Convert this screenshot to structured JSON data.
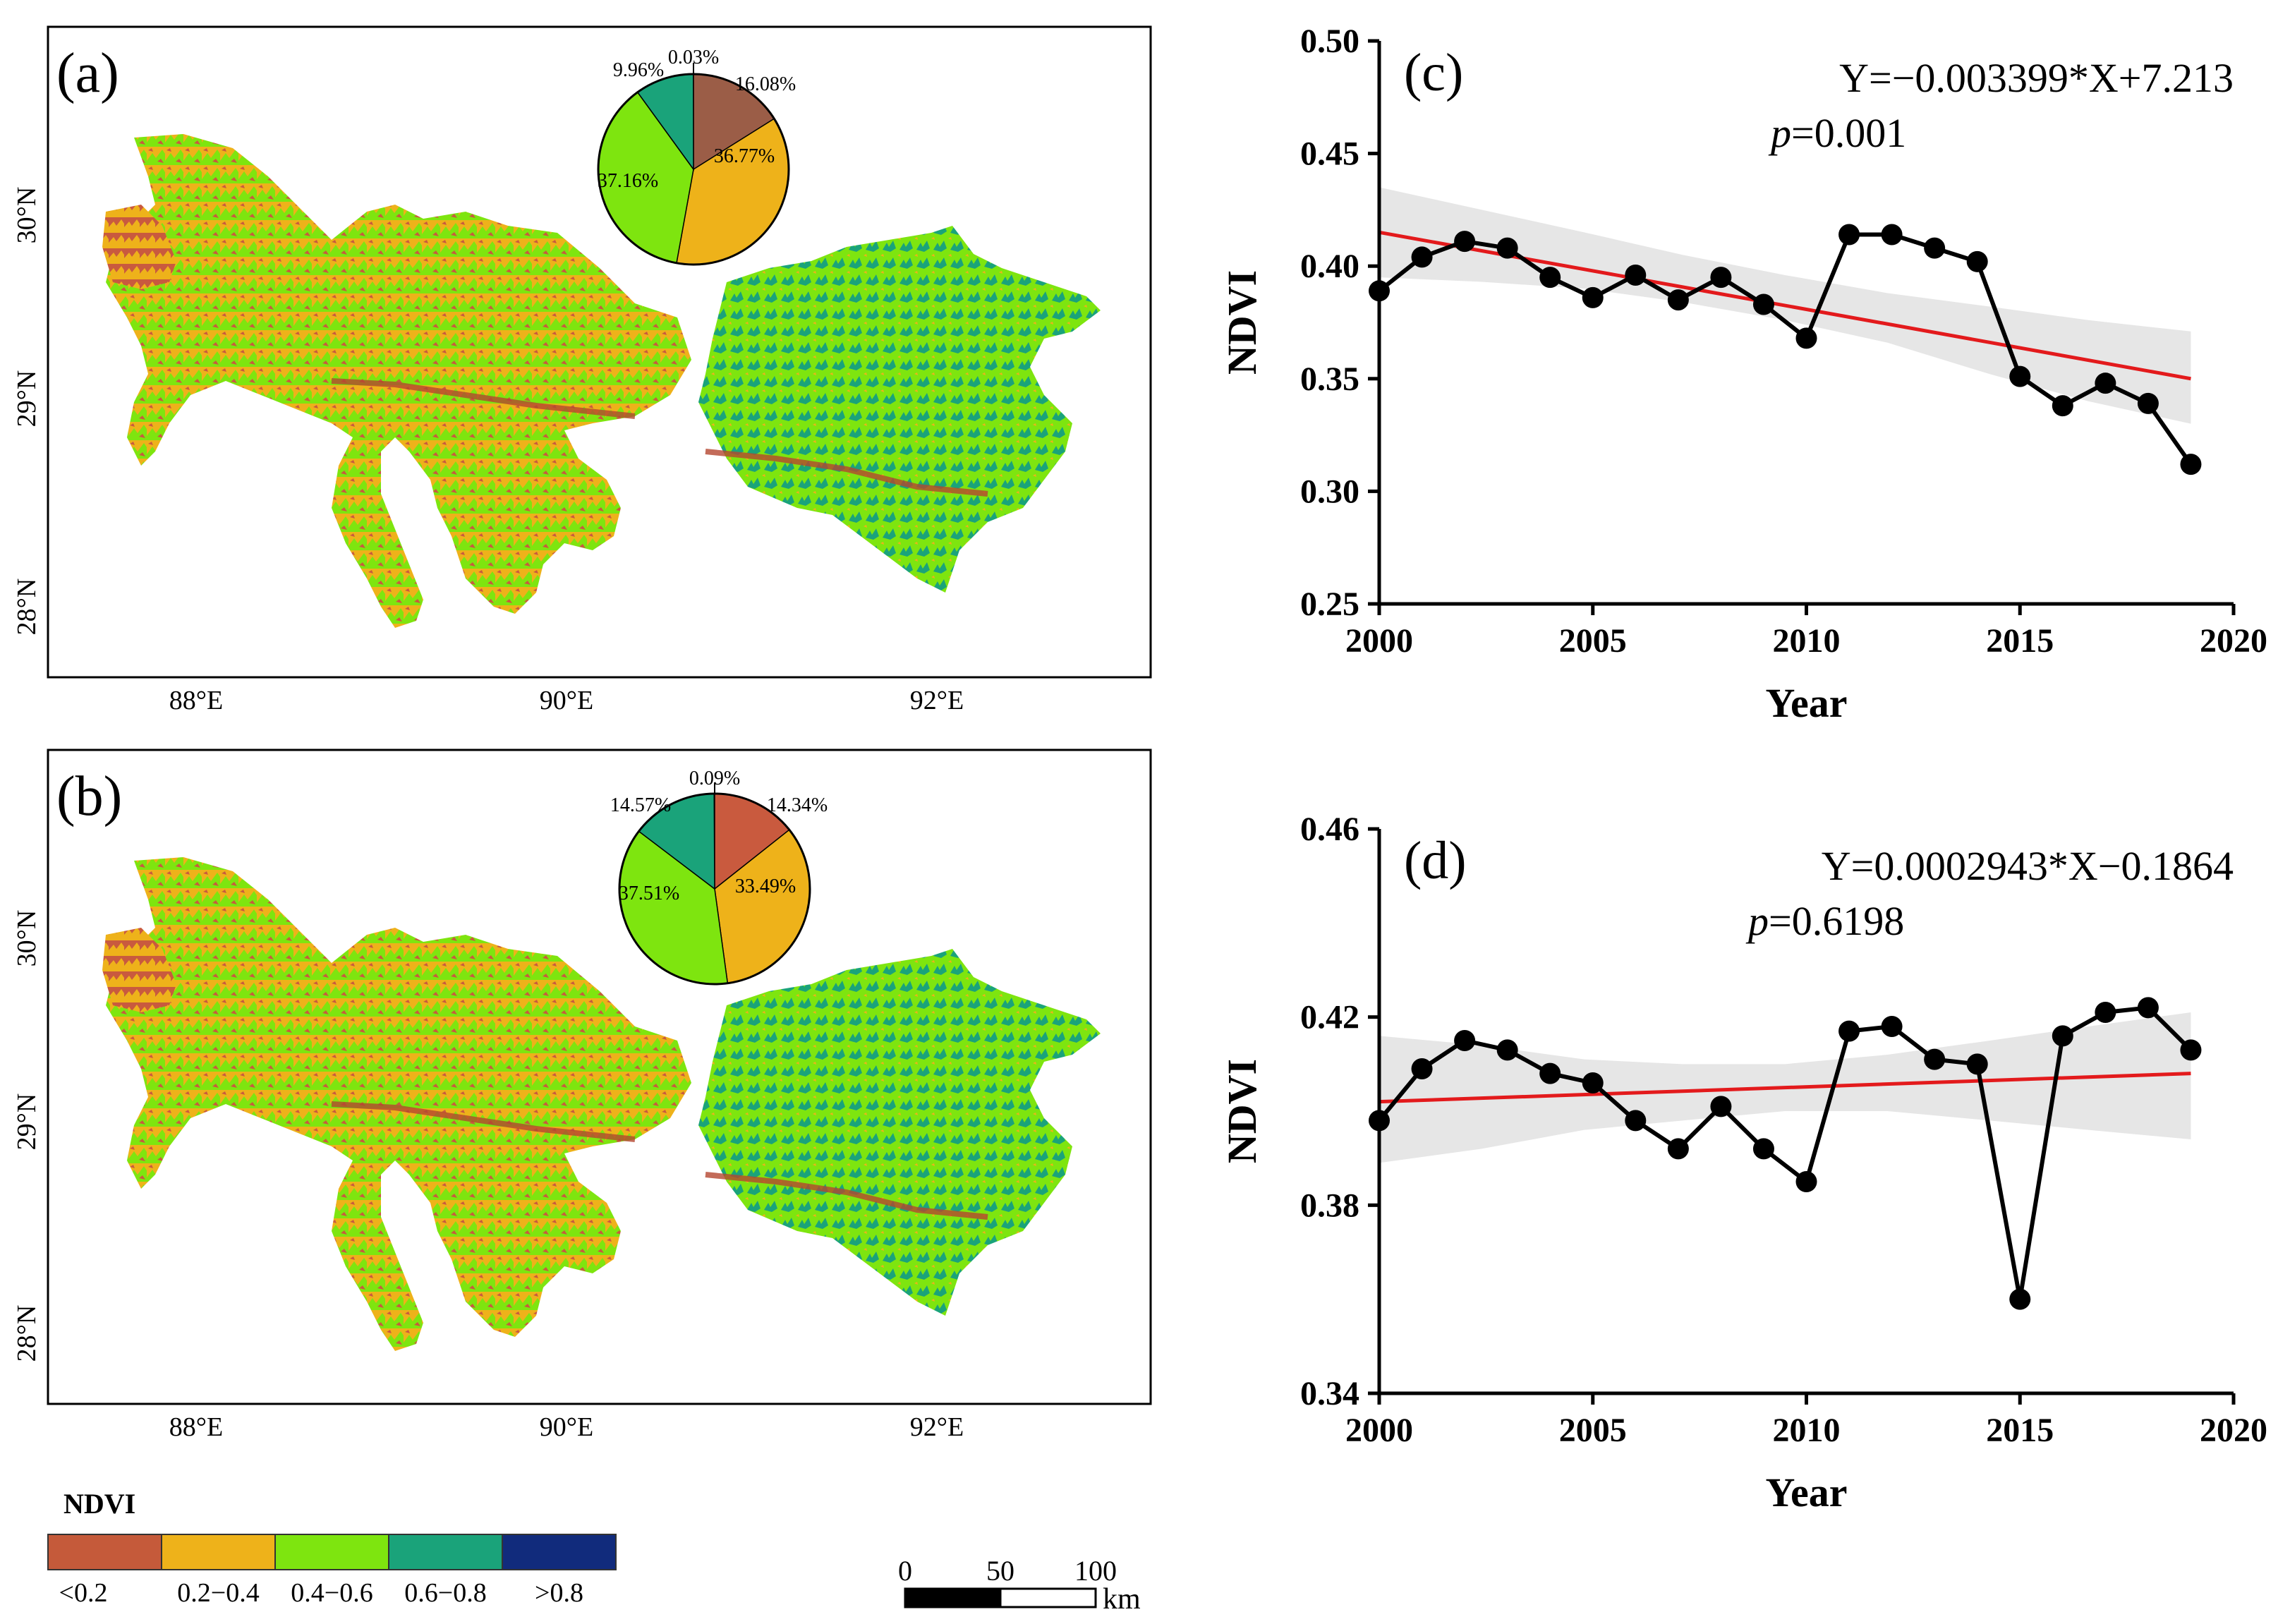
{
  "map_panels": [
    {
      "label": "(a)",
      "x_ticks": [
        "88°E",
        "90°E",
        "92°E"
      ],
      "y_ticks": [
        "30°N",
        "29°N",
        "28°N"
      ],
      "pie": [
        {
          "label": "16.08%",
          "value": 16.08,
          "color": "#9b5d47"
        },
        {
          "label": "36.77%",
          "value": 36.77,
          "color": "#eeb21a"
        },
        {
          "label": "37.16%",
          "value": 37.16,
          "color": "#7ee50f"
        },
        {
          "label": "9.96%",
          "value": 9.96,
          "color": "#1aa37a"
        },
        {
          "label": "0.03%",
          "value": 0.03,
          "color": "#102a7a"
        }
      ]
    },
    {
      "label": "(b)",
      "x_ticks": [
        "88°E",
        "90°E",
        "92°E"
      ],
      "y_ticks": [
        "30°N",
        "29°N",
        "28°N"
      ],
      "pie": [
        {
          "label": "14.34%",
          "value": 14.34,
          "color": "#c95a3e"
        },
        {
          "label": "33.49%",
          "value": 33.49,
          "color": "#eeb21a"
        },
        {
          "label": "37.51%",
          "value": 37.51,
          "color": "#7ee50f"
        },
        {
          "label": "14.57%",
          "value": 14.57,
          "color": "#1aa37a"
        },
        {
          "label": "0.09%",
          "value": 0.09,
          "color": "#102a7a"
        }
      ]
    }
  ],
  "legend": {
    "title": "NDVI",
    "classes": [
      {
        "label": "<0.2",
        "color": "#c55a3a"
      },
      {
        "label": "0.2−0.4",
        "color": "#eeb21a"
      },
      {
        "label": "0.4−0.6",
        "color": "#7ee50f"
      },
      {
        "label": "0.6−0.8",
        "color": "#1aa37a"
      },
      {
        "label": ">0.8",
        "color": "#112b7c"
      }
    ]
  },
  "scalebar": {
    "ticks": [
      "0",
      "50",
      "100"
    ],
    "unit": "km"
  },
  "chart_data": [
    {
      "type": "line",
      "panel": "(c)",
      "title": "",
      "xlabel": "Year",
      "ylabel": "NDVI",
      "xlim": [
        2000,
        2020
      ],
      "ylim": [
        0.25,
        0.5
      ],
      "x_ticks": [
        2000,
        2005,
        2010,
        2015,
        2020
      ],
      "y_ticks": [
        "0.25",
        "0.30",
        "0.35",
        "0.40",
        "0.45",
        "0.50"
      ],
      "equation": "Y=−0.003399*X+7.213",
      "p_label": "p",
      "p_value": "=0.001",
      "series": [
        {
          "name": "NDVI",
          "x": [
            2000,
            2001,
            2002,
            2003,
            2004,
            2005,
            2006,
            2007,
            2008,
            2009,
            2010,
            2011,
            2012,
            2013,
            2014,
            2015,
            2016,
            2017,
            2018,
            2019
          ],
          "values": [
            0.389,
            0.404,
            0.411,
            0.408,
            0.395,
            0.386,
            0.396,
            0.385,
            0.395,
            0.383,
            0.368,
            0.414,
            0.414,
            0.408,
            0.402,
            0.351,
            0.338,
            0.348,
            0.339,
            0.312
          ]
        }
      ],
      "trend": {
        "x": [
          2000,
          2019
        ],
        "values": [
          0.415,
          0.35
        ]
      },
      "ci_upper": [
        0.435,
        0.425,
        0.415,
        0.405,
        0.396,
        0.388,
        0.382,
        0.376,
        0.371
      ],
      "ci_lower": [
        0.395,
        0.393,
        0.39,
        0.384,
        0.376,
        0.366,
        0.352,
        0.34,
        0.33
      ],
      "ci_x": [
        2000,
        2002.4,
        2004.8,
        2007.1,
        2009.5,
        2011.9,
        2014.3,
        2016.6,
        2019
      ],
      "colors": {
        "line": "#000000",
        "trend": "#e31a1c",
        "ci": "#e6e6e6"
      }
    },
    {
      "type": "line",
      "panel": "(d)",
      "title": "",
      "xlabel": "Year",
      "ylabel": "NDVI",
      "xlim": [
        2000,
        2020
      ],
      "ylim": [
        0.34,
        0.46
      ],
      "x_ticks": [
        2000,
        2005,
        2010,
        2015,
        2020
      ],
      "y_ticks": [
        "0.34",
        "0.38",
        "0.42",
        "0.46"
      ],
      "equation": "Y=0.0002943*X−0.1864",
      "p_label": "p",
      "p_value": "=0.6198",
      "series": [
        {
          "name": "NDVI",
          "x": [
            2000,
            2001,
            2002,
            2003,
            2004,
            2005,
            2006,
            2007,
            2008,
            2009,
            2010,
            2011,
            2012,
            2013,
            2014,
            2015,
            2016,
            2017,
            2018,
            2019
          ],
          "values": [
            0.398,
            0.409,
            0.415,
            0.413,
            0.408,
            0.406,
            0.398,
            0.392,
            0.401,
            0.392,
            0.385,
            0.417,
            0.418,
            0.411,
            0.41,
            0.36,
            0.416,
            0.421,
            0.422,
            0.413
          ]
        }
      ],
      "trend": {
        "x": [
          2000,
          2019
        ],
        "values": [
          0.402,
          0.408
        ]
      },
      "ci_upper": [
        0.416,
        0.414,
        0.411,
        0.41,
        0.41,
        0.412,
        0.415,
        0.418,
        0.421
      ],
      "ci_lower": [
        0.389,
        0.392,
        0.396,
        0.398,
        0.4,
        0.4,
        0.398,
        0.396,
        0.394
      ],
      "ci_x": [
        2000,
        2002.4,
        2004.8,
        2007.1,
        2009.5,
        2011.9,
        2014.3,
        2016.6,
        2019
      ],
      "colors": {
        "line": "#000000",
        "trend": "#e31a1c",
        "ci": "#e6e6e6"
      }
    }
  ]
}
